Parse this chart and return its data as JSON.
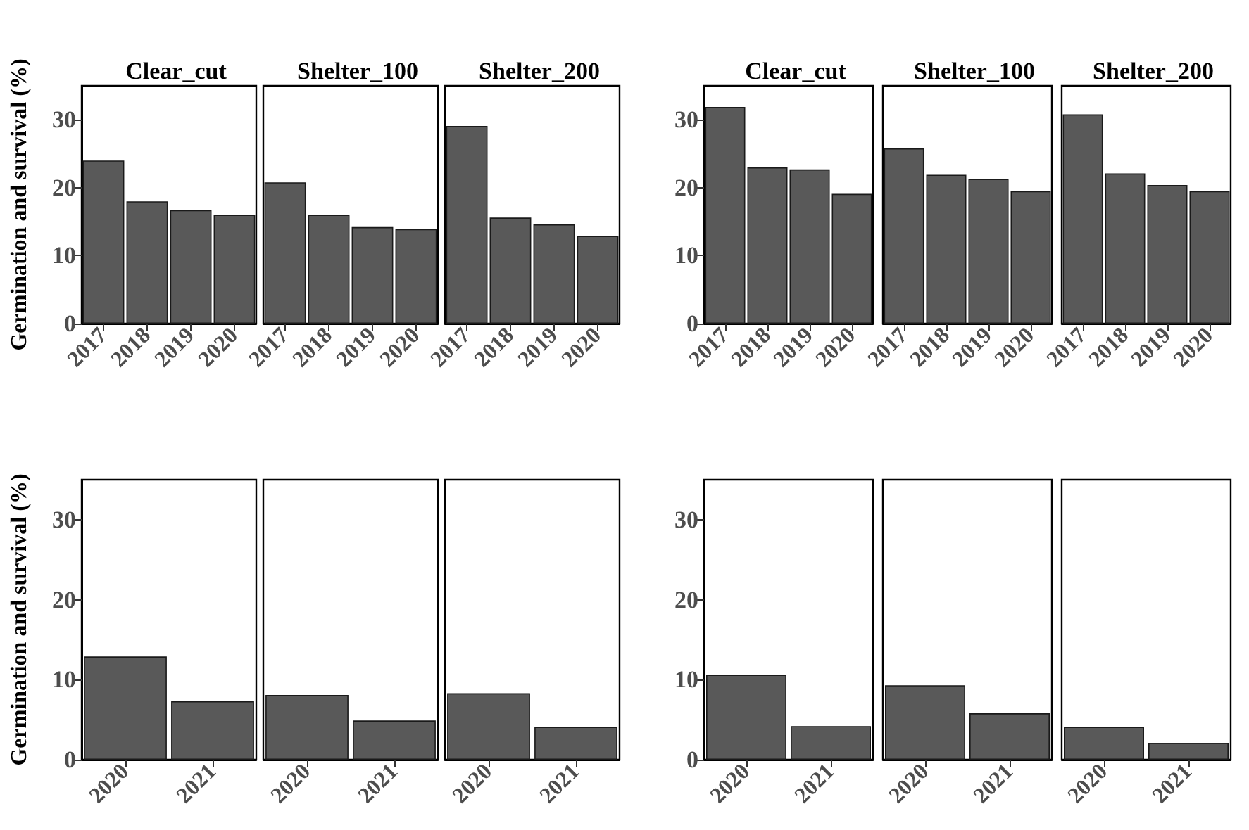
{
  "chart_data": [
    {
      "type": "bar",
      "title": "Clear_cut",
      "ylabel": "Germination and survival (%)",
      "categories": [
        "2017",
        "2018",
        "2019",
        "2020"
      ],
      "values": [
        24,
        18,
        16.7,
        16
      ],
      "color": "#595959",
      "ylim": [
        0,
        35
      ],
      "yticks": [
        0,
        10,
        20,
        30
      ]
    },
    {
      "type": "bar",
      "title": "Shelter_100",
      "categories": [
        "2017",
        "2018",
        "2019",
        "2020"
      ],
      "values": [
        20.8,
        16,
        14.2,
        13.9
      ],
      "color": "#595959",
      "ylim": [
        0,
        35
      ],
      "yticks": [
        0,
        10,
        20,
        30
      ],
      "tick_labels": "x"
    },
    {
      "type": "bar",
      "title": "Shelter_200",
      "categories": [
        "2017",
        "2018",
        "2019",
        "2020"
      ],
      "values": [
        29.1,
        15.6,
        14.6,
        12.9
      ],
      "color": "#595959",
      "ylim": [
        0,
        35
      ],
      "yticks": [
        0,
        10,
        20,
        30
      ],
      "tick_labels": "x"
    },
    {
      "type": "bar",
      "title": "Clear_cut",
      "categories": [
        "2017",
        "2018",
        "2019",
        "2020"
      ],
      "values": [
        31.9,
        23,
        22.7,
        19.1
      ],
      "color": "#595959",
      "ylim": [
        0,
        35
      ],
      "yticks": [
        0,
        10,
        20,
        30
      ]
    },
    {
      "type": "bar",
      "title": "Shelter_100",
      "categories": [
        "2017",
        "2018",
        "2019",
        "2020"
      ],
      "values": [
        25.8,
        21.9,
        21.3,
        19.5
      ],
      "color": "#595959",
      "ylim": [
        0,
        35
      ],
      "yticks": [
        0,
        10,
        20,
        30
      ],
      "tick_labels": "x"
    },
    {
      "type": "bar",
      "title": "Shelter_200",
      "categories": [
        "2017",
        "2018",
        "2019",
        "2020"
      ],
      "values": [
        30.8,
        22.1,
        20.4,
        19.5
      ],
      "color": "#595959",
      "ylim": [
        0,
        35
      ],
      "yticks": [
        0,
        10,
        20,
        30
      ],
      "tick_labels": "x"
    },
    {
      "type": "bar",
      "ylabel": "Germination and survival (%)",
      "categories": [
        "2020",
        "2021"
      ],
      "values": [
        12.9,
        7.3
      ],
      "color": "#595959",
      "ylim": [
        0,
        35
      ],
      "yticks": [
        0,
        10,
        20,
        30
      ]
    },
    {
      "type": "bar",
      "categories": [
        "2020",
        "2021"
      ],
      "values": [
        8.1,
        4.9
      ],
      "color": "#595959",
      "ylim": [
        0,
        35
      ],
      "yticks": [
        0,
        10,
        20,
        30
      ],
      "tick_labels": "x"
    },
    {
      "type": "bar",
      "categories": [
        "2020",
        "2021"
      ],
      "values": [
        8.3,
        4.1
      ],
      "color": "#595959",
      "ylim": [
        0,
        35
      ],
      "yticks": [
        0,
        10,
        20,
        30
      ],
      "tick_labels": "x"
    },
    {
      "type": "bar",
      "categories": [
        "2020",
        "2021"
      ],
      "values": [
        10.6,
        4.2
      ],
      "color": "#595959",
      "ylim": [
        0,
        35
      ],
      "yticks": [
        0,
        10,
        20,
        30
      ]
    },
    {
      "type": "bar",
      "categories": [
        "2020",
        "2021"
      ],
      "values": [
        9.3,
        5.8
      ],
      "color": "#595959",
      "ylim": [
        0,
        35
      ],
      "yticks": [
        0,
        10,
        20,
        30
      ],
      "tick_labels": "x"
    },
    {
      "type": "bar",
      "categories": [
        "2020",
        "2021"
      ],
      "values": [
        4.1,
        2.1
      ],
      "color": "#595959",
      "ylim": [
        0,
        35
      ],
      "yticks": [
        0,
        10,
        20,
        30
      ],
      "tick_labels": "x"
    }
  ]
}
